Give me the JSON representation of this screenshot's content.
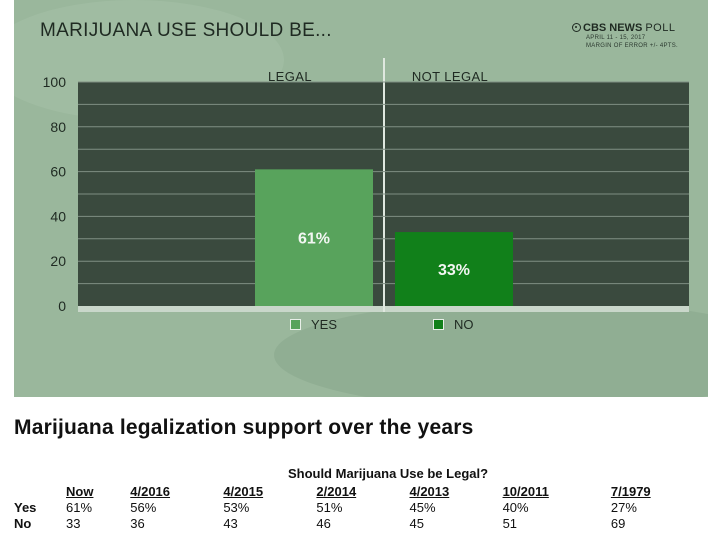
{
  "chart_data": {
    "type": "bar",
    "title": "MARIJUANA USE SHOULD BE...",
    "brand": "CBS NEWS",
    "brand_suffix": "POLL",
    "poll_dates": "APRIL 11 - 15, 2017",
    "margin_of_error": "MARGIN OF ERROR +/- 4PTS.",
    "categories": [
      "LEGAL",
      "NOT LEGAL"
    ],
    "series": [
      {
        "name": "YES",
        "values": [
          61,
          null
        ],
        "color": "#58a35c",
        "label": "61%"
      },
      {
        "name": "NO",
        "values": [
          null,
          33
        ],
        "color": "#11801a",
        "label": "33%"
      }
    ],
    "ylim": [
      0,
      100
    ],
    "yticks": [
      "0",
      "20",
      "40",
      "60",
      "80",
      "100"
    ],
    "grid": true,
    "legend_position": "bottom",
    "colors": {
      "panel_bg": "#9ab79c",
      "plot_bg": "#3a4a3e",
      "grid": "#7f8f83"
    }
  },
  "section": {
    "heading": "Marijuana legalization support over the years"
  },
  "poll_table": {
    "question": "Should Marijuana Use be Legal?",
    "columns": [
      "Now",
      "4/2016",
      "4/2015",
      "2/2014",
      "4/2013",
      "10/2011",
      "7/1979"
    ],
    "rows": [
      {
        "label": "Yes",
        "values": [
          "61%",
          "56%",
          "53%",
          "51%",
          "45%",
          "40%",
          "27%"
        ]
      },
      {
        "label": "No",
        "values": [
          "33",
          "36",
          "43",
          "46",
          "45",
          "51",
          "69"
        ]
      }
    ]
  }
}
